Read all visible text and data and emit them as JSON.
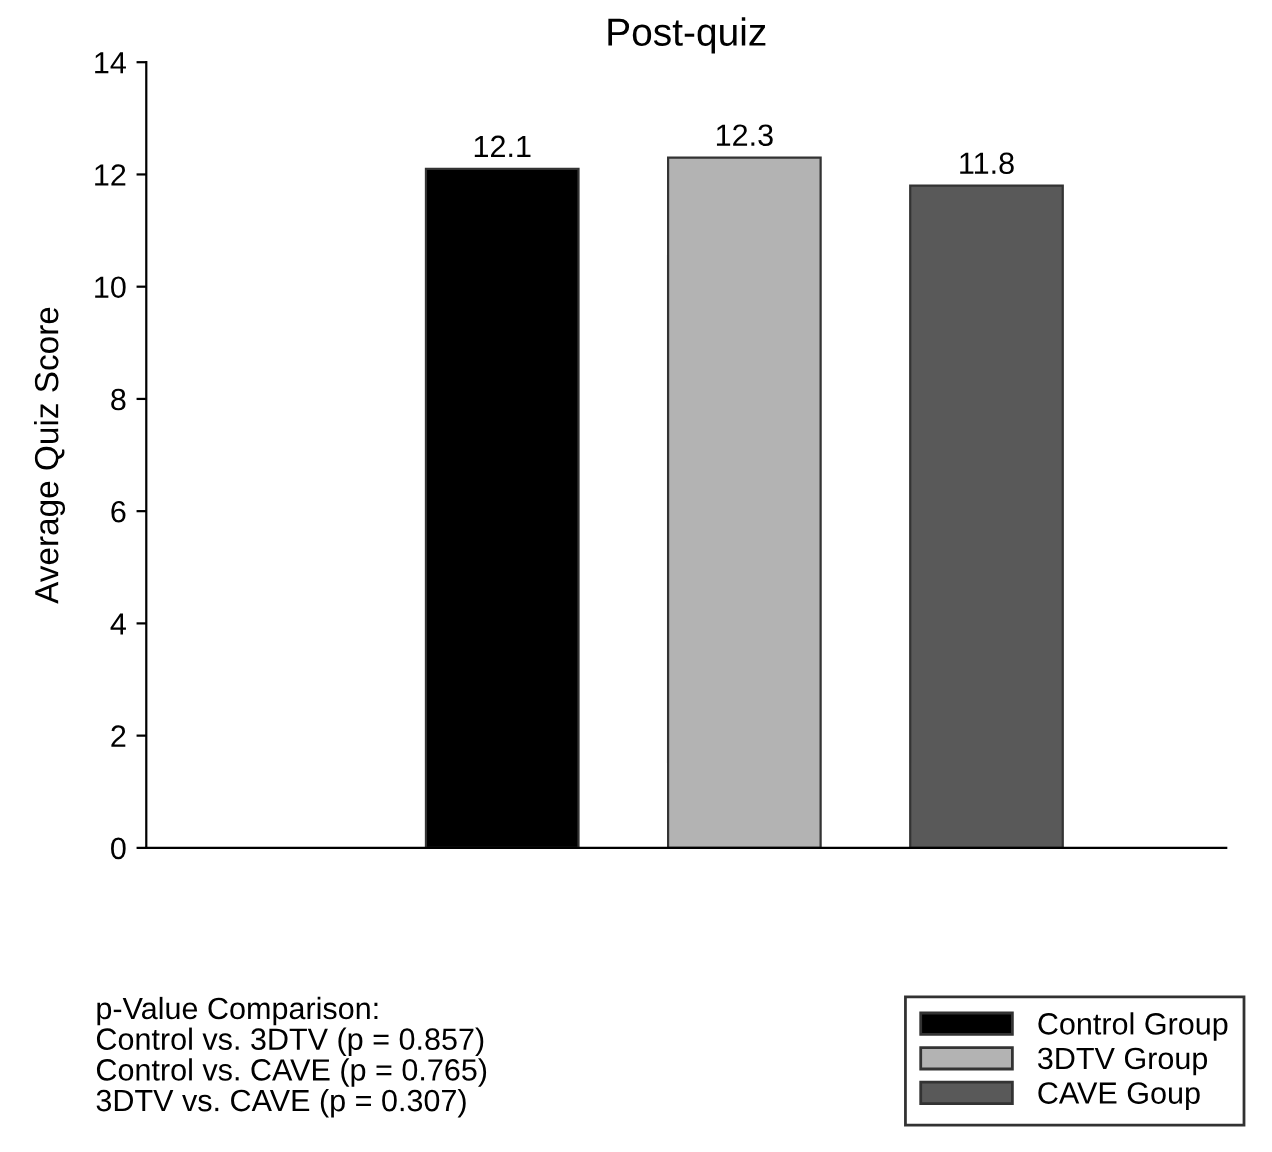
{
  "chart_data": {
    "type": "bar",
    "title": "Post-quiz",
    "ylabel": "Average Quiz Score",
    "categories": [
      null,
      null,
      null
    ],
    "series": [
      {
        "name": "Control Group",
        "color": "#000000",
        "values": [
          12.1,
          null,
          null
        ]
      },
      {
        "name": "3DTV Group",
        "color": "#b3b3b3",
        "values": [
          null,
          12.3,
          null
        ]
      },
      {
        "name": "CAVE Goup",
        "color": "#595959",
        "values": [
          null,
          null,
          11.8
        ]
      }
    ],
    "ylim": [
      0,
      14
    ],
    "yticks": [
      0,
      2,
      4,
      6,
      8,
      10,
      12,
      14
    ],
    "data_labels": true,
    "legend": "bottom right",
    "grid": false,
    "annotations": [
      "p-Value Comparison:\nControl vs. 3DTV (p = 0.857)\nControl vs. CAVE (p = 0.765)\n3DTV vs. CAVE (p = 0.307)"
    ]
  }
}
